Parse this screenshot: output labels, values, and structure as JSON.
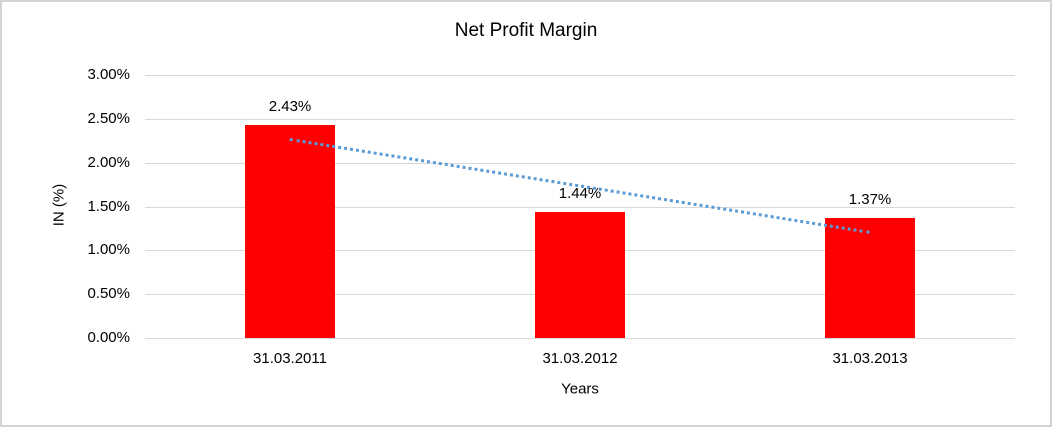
{
  "chart_data": {
    "type": "bar",
    "title": "Net Profit Margin",
    "xlabel": "Years",
    "ylabel": "IN (%)",
    "categories": [
      "31.03.2011",
      "31.03.2012",
      "31.03.2013"
    ],
    "values": [
      2.43,
      1.44,
      1.37
    ],
    "data_labels": [
      "2.43%",
      "1.44%",
      "1.37%"
    ],
    "ylim": [
      0,
      3
    ],
    "ytick_step": 0.5,
    "ytick_labels": [
      "0.00%",
      "0.50%",
      "1.00%",
      "1.50%",
      "2.00%",
      "2.50%",
      "3.00%"
    ],
    "grid": true,
    "legend": "none",
    "bar_color": "#ff0000",
    "gridline_color": "#d9d9d9",
    "text_color": "#000000",
    "trendline": {
      "type": "linear",
      "style": "dotted",
      "color": "#5b9bd5",
      "start_value": 2.28,
      "end_value": 1.22
    }
  }
}
